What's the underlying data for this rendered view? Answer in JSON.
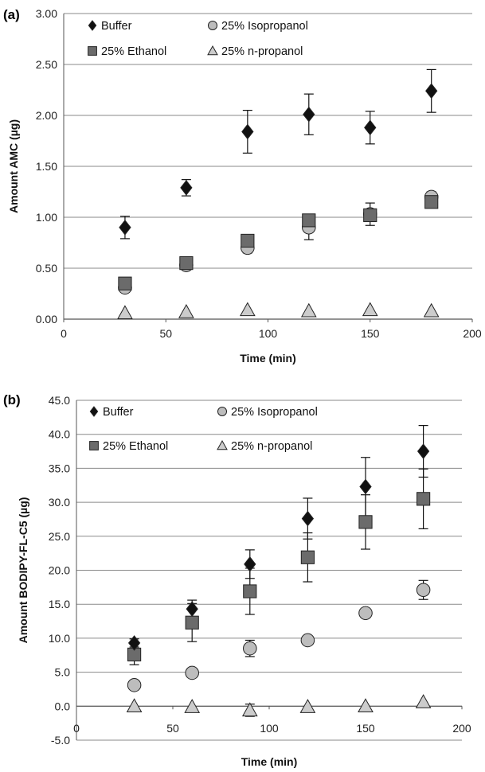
{
  "chart_data": [
    {
      "panel_label": "(a)",
      "type": "scatter",
      "xlabel": "Time (min)",
      "ylabel": "Amount AMC (µg)",
      "xlim": [
        0,
        200
      ],
      "ylim": [
        0,
        3
      ],
      "x_ticks": [
        "0",
        "50",
        "100",
        "150",
        "200"
      ],
      "y_ticks": [
        "0.00",
        "0.50",
        "1.00",
        "1.50",
        "2.00",
        "2.50",
        "3.00"
      ],
      "grid": "horizontal",
      "legend_position": "top-left",
      "series": [
        {
          "name": "Buffer",
          "marker": "diamond",
          "color": "#111111",
          "x": [
            30,
            60,
            90,
            120,
            150,
            180
          ],
          "y": [
            0.9,
            1.29,
            1.84,
            2.01,
            1.88,
            2.24
          ],
          "err": [
            0.11,
            0.08,
            0.21,
            0.2,
            0.16,
            0.21
          ]
        },
        {
          "name": "25% Isopropanol",
          "marker": "circle",
          "color": "#bdbdbd",
          "x": [
            30,
            60,
            90,
            120,
            150,
            180
          ],
          "y": [
            0.31,
            0.53,
            0.7,
            0.9,
            1.03,
            1.2
          ],
          "err": [
            0.03,
            0.03,
            0.05,
            0.12,
            0.11,
            0.05
          ]
        },
        {
          "name": "25% Ethanol",
          "marker": "square",
          "color": "#6b6b6b",
          "x": [
            30,
            60,
            90,
            120,
            150,
            180
          ],
          "y": [
            0.35,
            0.55,
            0.77,
            0.97,
            1.02,
            1.15
          ],
          "err": [
            0.02,
            0.03,
            0.03,
            0.03,
            0.04,
            0.04
          ]
        },
        {
          "name": "25% n-propanol",
          "marker": "triangle",
          "color": "#cccccc",
          "x": [
            30,
            60,
            90,
            120,
            150,
            180
          ],
          "y": [
            0.06,
            0.07,
            0.09,
            0.08,
            0.09,
            0.08
          ],
          "err": [
            0,
            0,
            0,
            0,
            0,
            0
          ]
        }
      ]
    },
    {
      "panel_label": "(b)",
      "type": "scatter",
      "xlabel": "Time (min)",
      "ylabel": "Amount BODIPY-FL-C5 (µg)",
      "xlim": [
        0,
        200
      ],
      "ylim": [
        -5,
        45
      ],
      "x_ticks": [
        "0",
        "50",
        "100",
        "150",
        "200"
      ],
      "y_ticks": [
        "-5.0",
        "0.0",
        "5.0",
        "10.0",
        "15.0",
        "20.0",
        "25.0",
        "30.0",
        "35.0",
        "40.0",
        "45.0"
      ],
      "grid": "horizontal",
      "legend_position": "top-left",
      "series": [
        {
          "name": "Buffer",
          "marker": "diamond",
          "color": "#111111",
          "x": [
            30,
            60,
            90,
            120,
            150,
            180
          ],
          "y": [
            9.3,
            14.3,
            20.9,
            27.6,
            32.3,
            37.5
          ],
          "err": [
            0.6,
            1.3,
            2.1,
            3.0,
            4.3,
            3.8
          ]
        },
        {
          "name": "25% Isopropanol",
          "marker": "circle",
          "color": "#bdbdbd",
          "x": [
            30,
            60,
            90,
            120,
            150,
            180
          ],
          "y": [
            3.1,
            4.9,
            8.5,
            9.7,
            13.7,
            17.1
          ],
          "err": [
            0.3,
            0.3,
            1.2,
            0.3,
            0.3,
            1.4
          ]
        },
        {
          "name": "25% Ethanol",
          "marker": "square",
          "color": "#6b6b6b",
          "x": [
            30,
            60,
            90,
            120,
            150,
            180
          ],
          "y": [
            7.6,
            12.3,
            16.9,
            21.9,
            27.1,
            30.5
          ],
          "err": [
            1.5,
            2.8,
            3.4,
            3.6,
            4.0,
            4.4
          ]
        },
        {
          "name": "25% n-propanol",
          "marker": "triangle",
          "color": "#cccccc",
          "x": [
            30,
            60,
            90,
            120,
            150,
            180
          ],
          "y": [
            0.0,
            -0.1,
            -0.6,
            -0.1,
            0.0,
            0.6
          ],
          "err": [
            0,
            0,
            0.9,
            0,
            0,
            0
          ]
        }
      ]
    }
  ]
}
